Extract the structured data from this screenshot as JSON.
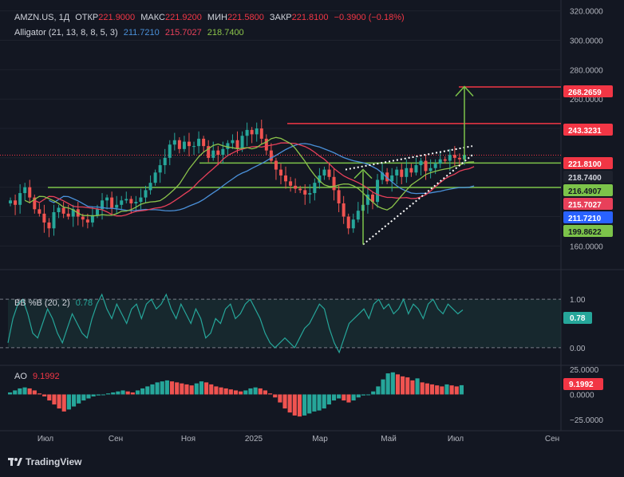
{
  "header": {
    "symbol": "AMZN.US, 1Д",
    "open_label": "ОТКР",
    "open": "221.9000",
    "high_label": "МАКС",
    "high": "221.9200",
    "low_label": "МИН",
    "low": "221.5800",
    "close_label": "ЗАКР",
    "close": "221.8100",
    "change": "−0.3900 (−0.18%)"
  },
  "alligator": {
    "label": "Alligator (21, 13, 8, 8, 5, 3)",
    "jaw": "211.7210",
    "teeth": "215.7027",
    "lips": "218.7400"
  },
  "bb": {
    "label": "BB %B (20, 2)",
    "value": "0.78"
  },
  "ao": {
    "label": "AO",
    "value": "9.1992"
  },
  "brand": "TradingView",
  "colors": {
    "bg": "#131722",
    "up": "#26a69a",
    "down": "#ef5350",
    "jaw": "#4a90d9",
    "teeth": "#e8405a",
    "lips": "#8bc34a",
    "level_red": "#f23645",
    "level_green": "#7cc34a"
  },
  "chart_data": [
    {
      "type": "candlestick",
      "title": "AMZN.US, 1Д",
      "x_ticks": [
        "Июл",
        "Сен",
        "Ноя",
        "2025",
        "Мар",
        "Май",
        "Июл",
        "Сен"
      ],
      "y_ticks": [
        "320.0000",
        "300.0000",
        "280.0000",
        "260.0000",
        "160.0000"
      ],
      "ylim": [
        145,
        322
      ],
      "price_tags": [
        {
          "label": "268.2659",
          "kind": "level_red"
        },
        {
          "label": "243.3231",
          "kind": "level_red"
        },
        {
          "label": "221.8100",
          "kind": "last"
        },
        {
          "label": "218.7400",
          "kind": "lips"
        },
        {
          "label": "216.4907",
          "kind": "level_green"
        },
        {
          "label": "215.7027",
          "kind": "teeth"
        },
        {
          "label": "211.7210",
          "kind": "jaw"
        },
        {
          "label": "199.8622",
          "kind": "level_green"
        }
      ],
      "levels": [
        {
          "value": 268.27,
          "color": "level_red"
        },
        {
          "value": 243.32,
          "color": "level_red"
        },
        {
          "value": 216.49,
          "color": "level_green"
        },
        {
          "value": 199.86,
          "color": "level_green"
        }
      ],
      "series": [
        {
          "name": "Price",
          "kind": "candles",
          "close": [
            191,
            188,
            196,
            200,
            193,
            185,
            182,
            176,
            172,
            183,
            186,
            182,
            180,
            185,
            180,
            178,
            176,
            181,
            185,
            191,
            193,
            186,
            188,
            191,
            192,
            189,
            190,
            193,
            198,
            203,
            210,
            215,
            220,
            229,
            232,
            226,
            231,
            228,
            228,
            233,
            228,
            220,
            225,
            222,
            226,
            230,
            232,
            226,
            235,
            239,
            236,
            240,
            233,
            225,
            218,
            212,
            208,
            204,
            201,
            199,
            198,
            195,
            196,
            203,
            208,
            212,
            207,
            198,
            189,
            180,
            172,
            178,
            184,
            188,
            195,
            190,
            205,
            210,
            204,
            208,
            212,
            207,
            213,
            210,
            215,
            218,
            211,
            213,
            216,
            219,
            218,
            222,
            220,
            219,
            222
          ]
        }
      ]
    },
    {
      "type": "line",
      "title": "BB %B (20, 2)",
      "y_ticks": [
        "1.00",
        "0.00"
      ],
      "ylim": [
        -0.2,
        1.25
      ],
      "series": [
        {
          "name": "BB %B",
          "values": [
            0.1,
            0.6,
            0.9,
            1.0,
            0.7,
            0.3,
            0.2,
            0.5,
            0.8,
            0.6,
            0.3,
            0.1,
            0.4,
            0.7,
            0.5,
            0.3,
            0.2,
            0.6,
            0.9,
            1.1,
            0.8,
            0.6,
            0.9,
            0.7,
            0.5,
            0.8,
            0.9,
            0.6,
            0.9,
            1.0,
            0.8,
            0.9,
            1.1,
            0.8,
            0.6,
            0.9,
            0.7,
            0.5,
            0.8,
            0.6,
            0.2,
            0.3,
            0.6,
            0.5,
            0.8,
            0.9,
            0.6,
            0.7,
            0.9,
            1.0,
            0.8,
            0.6,
            0.3,
            0.1,
            0.0,
            0.1,
            0.2,
            0.1,
            0.0,
            0.2,
            0.4,
            0.5,
            0.7,
            0.9,
            0.8,
            0.4,
            0.1,
            -0.1,
            0.2,
            0.5,
            0.6,
            0.7,
            0.8,
            0.6,
            0.9,
            1.0,
            0.8,
            0.9,
            0.7,
            0.8,
            1.0,
            0.7,
            0.9,
            0.8,
            0.6,
            0.9,
            1.0,
            0.8,
            0.7,
            0.9,
            0.8,
            0.7,
            0.78
          ]
        }
      ]
    },
    {
      "type": "bar",
      "title": "AO",
      "y_ticks": [
        "25.0000",
        "0.0000",
        "−25.0000"
      ],
      "ylim": [
        -33,
        29
      ],
      "series": [
        {
          "name": "AO",
          "values": [
            2,
            4,
            6,
            7,
            6,
            4,
            1,
            -2,
            -6,
            -10,
            -14,
            -17,
            -15,
            -12,
            -9,
            -6,
            -4,
            -2,
            -1,
            0,
            1,
            2,
            3,
            4,
            3,
            2,
            4,
            6,
            8,
            10,
            12,
            13,
            14,
            13,
            12,
            11,
            10,
            9,
            11,
            13,
            12,
            10,
            8,
            7,
            6,
            5,
            4,
            3,
            4,
            6,
            7,
            6,
            4,
            1,
            -3,
            -8,
            -14,
            -18,
            -21,
            -22,
            -21,
            -19,
            -17,
            -16,
            -14,
            -10,
            -6,
            -4,
            -6,
            -8,
            -6,
            -3,
            -1,
            0,
            3,
            8,
            15,
            21,
            22,
            20,
            18,
            17,
            14,
            16,
            12,
            11,
            10,
            9,
            8,
            10,
            9,
            8,
            9.1992
          ]
        }
      ]
    }
  ]
}
